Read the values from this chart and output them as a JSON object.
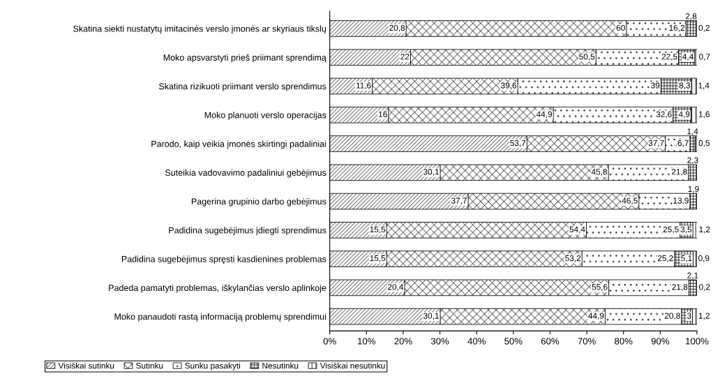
{
  "chart_data": {
    "type": "bar",
    "orientation": "horizontal",
    "stacked": true,
    "categories": [
      "Skatina siekti nustatytų imitacinės verslo įmonės ar skyriaus tikslų",
      "Moko apsvarstyti prieš priimant sprendimą",
      "Skatina rizikuoti priimant verslo sprendimus",
      "Moko planuoti verslo operacijas",
      "Parodo, kaip veikia įmonės skirtingi padaliniai",
      "Suteikia vadovavimo padaliniui gebėjimus",
      "Pagerina grupinio darbo gebėjimus",
      "Padidina sugebėjimus įdiegti sprendimus",
      "Padidina sugebėjimus spręsti kasdienines problemas",
      "Padeda pamatyti problemas, iškylančias verslo aplinkoje",
      "Moko panaudoti rastą informaciją problemų sprendimui"
    ],
    "series": [
      {
        "name": "Visiškai sutinku",
        "color": "#000000",
        "values": [
          20.8,
          22,
          11.6,
          16,
          53.7,
          30.1,
          37.7,
          15.5,
          15.5,
          20.4,
          30.1
        ],
        "value_labels": [
          "20,8",
          "22",
          "11,6",
          "16",
          "53,7",
          "30,1",
          "37,7",
          "15,5",
          "15,5",
          "20,4",
          "30,1"
        ]
      },
      {
        "name": "Sutinku",
        "color": "#000000",
        "values": [
          60,
          50.5,
          39.6,
          44.9,
          37.7,
          45.8,
          46.5,
          54.4,
          53.2,
          55.6,
          44.9
        ],
        "value_labels": [
          "60",
          "50,5",
          "39,6",
          "44,9",
          "37,7",
          "45,8",
          "46,5",
          "54,4",
          "53,2",
          "55,6",
          "44,9"
        ]
      },
      {
        "name": "Sunku pasakyti",
        "color": "#000000",
        "values": [
          16.2,
          22.5,
          39,
          32.6,
          6.7,
          21.8,
          13.9,
          25.5,
          25.2,
          21.8,
          20.8
        ],
        "value_labels": [
          "16,2",
          "22,5",
          "39",
          "32,6",
          "6,7",
          "21,8",
          "13,9",
          "25,5",
          "25,2",
          "21,8",
          "20,8"
        ]
      },
      {
        "name": "Nesutinku",
        "color": "#000000",
        "values": [
          2.8,
          4.4,
          8.3,
          4.9,
          1.4,
          2.3,
          1.9,
          3.5,
          5.1,
          2.1,
          3
        ],
        "value_labels": [
          "2,8",
          "4,4",
          "8,3",
          "4,9",
          "1,4",
          "2,3",
          "1,9",
          "3,5",
          "5,1",
          "2,1",
          "3"
        ]
      },
      {
        "name": "Visiškai nesutinku",
        "color": "#000000",
        "values": [
          0.2,
          0.7,
          1.4,
          1.6,
          0.5,
          null,
          null,
          1.2,
          0.9,
          0.2,
          1.2
        ],
        "value_labels": [
          "0,2",
          "0,7",
          "1,4",
          "1,6",
          "0,5",
          null,
          null,
          "1,2",
          "0,9",
          "0,2",
          "1,2"
        ]
      }
    ],
    "xlim": [
      0,
      100
    ],
    "xticks": [
      {
        "value": 0,
        "label": "0%"
      },
      {
        "value": 10,
        "label": "10%"
      },
      {
        "value": 20,
        "label": "20%"
      },
      {
        "value": 30,
        "label": "30%"
      },
      {
        "value": 40,
        "label": "40%"
      },
      {
        "value": 50,
        "label": "50%"
      },
      {
        "value": 60,
        "label": "60%"
      },
      {
        "value": 70,
        "label": "70%"
      },
      {
        "value": 80,
        "label": "80%"
      },
      {
        "value": 90,
        "label": "90%"
      },
      {
        "value": 100,
        "label": "100%"
      }
    ],
    "grid": false,
    "legend": "bottom"
  }
}
